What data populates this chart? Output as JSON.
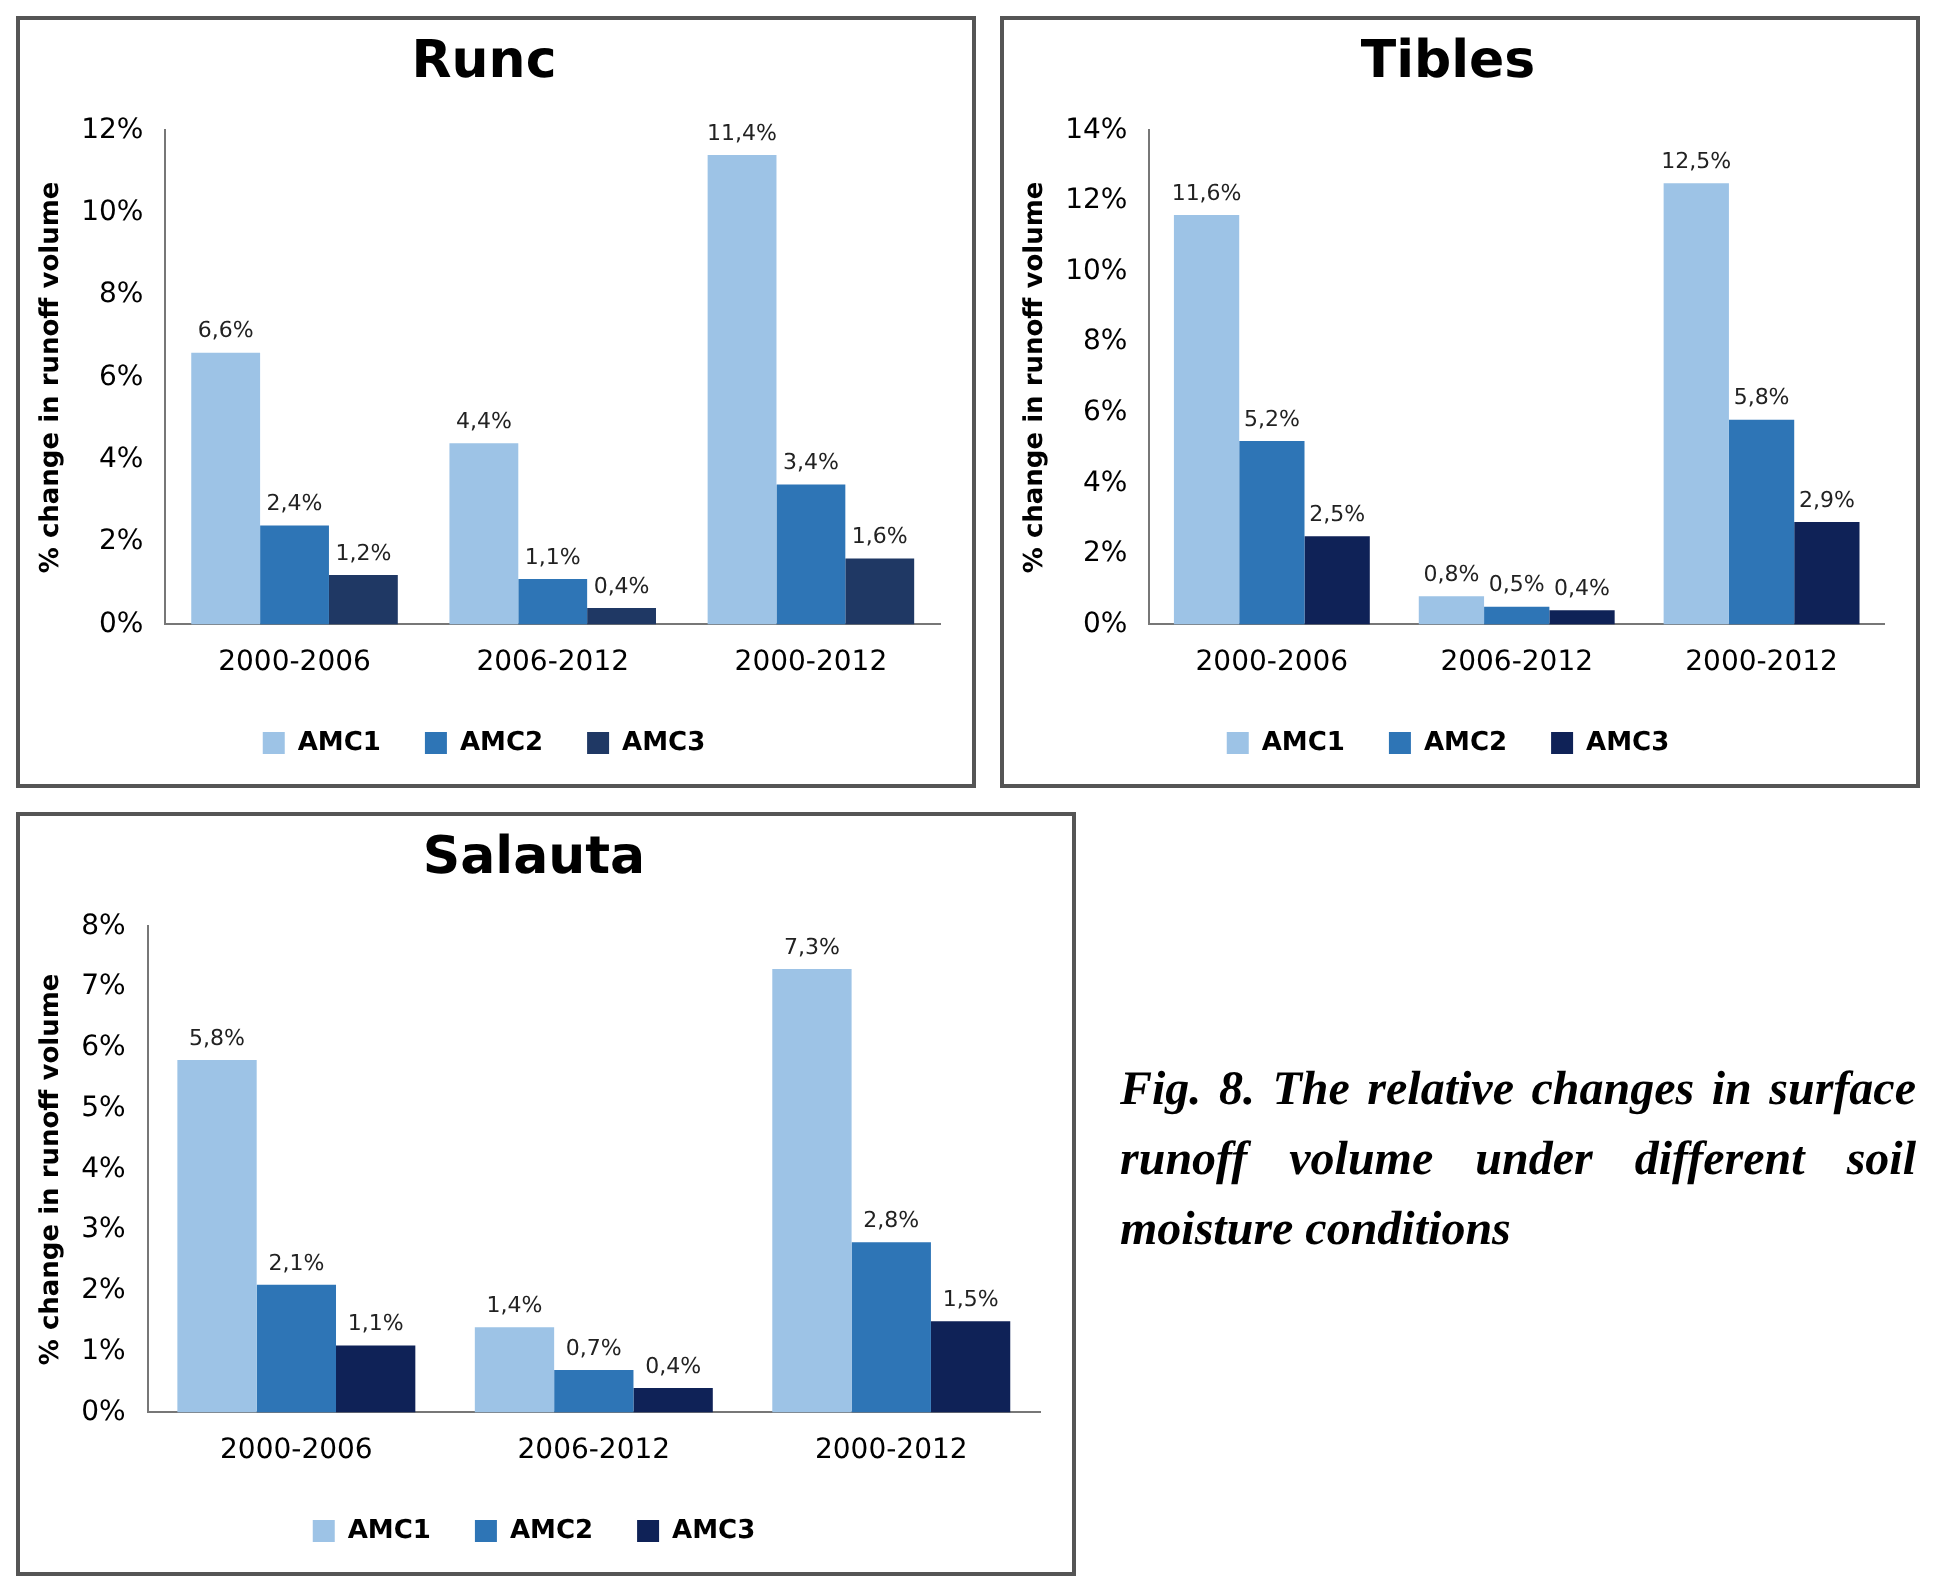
{
  "chart_data": [
    {
      "type": "bar",
      "title": "Runc",
      "ylabel": "% change in runoff volume",
      "categories": [
        "2000-2006",
        "2006-2012",
        "2000-2012"
      ],
      "series": [
        {
          "name": "AMC1",
          "color": "#9dc3e6",
          "values": [
            6.6,
            4.4,
            11.4
          ],
          "value_labels": [
            "6,6%",
            "4,4%",
            "11,4%"
          ]
        },
        {
          "name": "AMC2",
          "color": "#2e75b6",
          "values": [
            2.4,
            1.1,
            3.4
          ],
          "value_labels": [
            "2,4%",
            "1,1%",
            "3,4%"
          ]
        },
        {
          "name": "AMC3",
          "color": "#1f3864",
          "values": [
            1.2,
            0.4,
            1.6
          ],
          "value_labels": [
            "1,2%",
            "0,4%",
            "1,6%"
          ]
        }
      ],
      "ylim": [
        0,
        12
      ],
      "yticks": [
        {
          "value": 0,
          "label": "0%"
        },
        {
          "value": 2,
          "label": "2%"
        },
        {
          "value": 4,
          "label": "4%"
        },
        {
          "value": 6,
          "label": "6%"
        },
        {
          "value": 8,
          "label": "8%"
        },
        {
          "value": 10,
          "label": "10%"
        },
        {
          "value": 12,
          "label": "12%"
        }
      ],
      "legend": "bottom",
      "grid": false
    },
    {
      "type": "bar",
      "title": "Tibles",
      "ylabel": "% change in runoff volume",
      "categories": [
        "2000-2006",
        "2006-2012",
        "2000-2012"
      ],
      "series": [
        {
          "name": "AMC1",
          "color": "#9dc3e6",
          "values": [
            11.6,
            0.8,
            12.5
          ],
          "value_labels": [
            "11,6%",
            "0,8%",
            "12,5%"
          ]
        },
        {
          "name": "AMC2",
          "color": "#2e75b6",
          "values": [
            5.2,
            0.5,
            5.8
          ],
          "value_labels": [
            "5,2%",
            "0,5%",
            "5,8%"
          ]
        },
        {
          "name": "AMC3",
          "color": "#0f2257",
          "values": [
            2.5,
            0.4,
            2.9
          ],
          "value_labels": [
            "2,5%",
            "0,4%",
            "2,9%"
          ]
        }
      ],
      "ylim": [
        0,
        14
      ],
      "yticks": [
        {
          "value": 0,
          "label": "0%"
        },
        {
          "value": 2,
          "label": "2%"
        },
        {
          "value": 4,
          "label": "4%"
        },
        {
          "value": 6,
          "label": "6%"
        },
        {
          "value": 8,
          "label": "8%"
        },
        {
          "value": 10,
          "label": "10%"
        },
        {
          "value": 12,
          "label": "12%"
        },
        {
          "value": 14,
          "label": "14%"
        }
      ],
      "legend": "bottom",
      "grid": false
    },
    {
      "type": "bar",
      "title": "Salauta",
      "ylabel": "% change in runoff volume",
      "categories": [
        "2000-2006",
        "2006-2012",
        "2000-2012"
      ],
      "series": [
        {
          "name": "AMC1",
          "color": "#9dc3e6",
          "values": [
            5.8,
            1.4,
            7.3
          ],
          "value_labels": [
            "5,8%",
            "1,4%",
            "7,3%"
          ]
        },
        {
          "name": "AMC2",
          "color": "#2e75b6",
          "values": [
            2.1,
            0.7,
            2.8
          ],
          "value_labels": [
            "2,1%",
            "0,7%",
            "2,8%"
          ]
        },
        {
          "name": "AMC3",
          "color": "#0f2257",
          "values": [
            1.1,
            0.4,
            1.5
          ],
          "value_labels": [
            "1,1%",
            "0,4%",
            "1,5%"
          ]
        }
      ],
      "ylim": [
        0,
        8
      ],
      "yticks": [
        {
          "value": 0,
          "label": "0%"
        },
        {
          "value": 1,
          "label": "1%"
        },
        {
          "value": 2,
          "label": "2%"
        },
        {
          "value": 3,
          "label": "3%"
        },
        {
          "value": 4,
          "label": "4%"
        },
        {
          "value": 5,
          "label": "5%"
        },
        {
          "value": 6,
          "label": "6%"
        },
        {
          "value": 7,
          "label": "7%"
        },
        {
          "value": 8,
          "label": "8%"
        }
      ],
      "legend": "bottom",
      "grid": false
    },
    {
      "type": "other",
      "annotations": [
        "Fig. 8. The relative changes in surface runoff volume under different soil moisture conditions"
      ]
    }
  ]
}
